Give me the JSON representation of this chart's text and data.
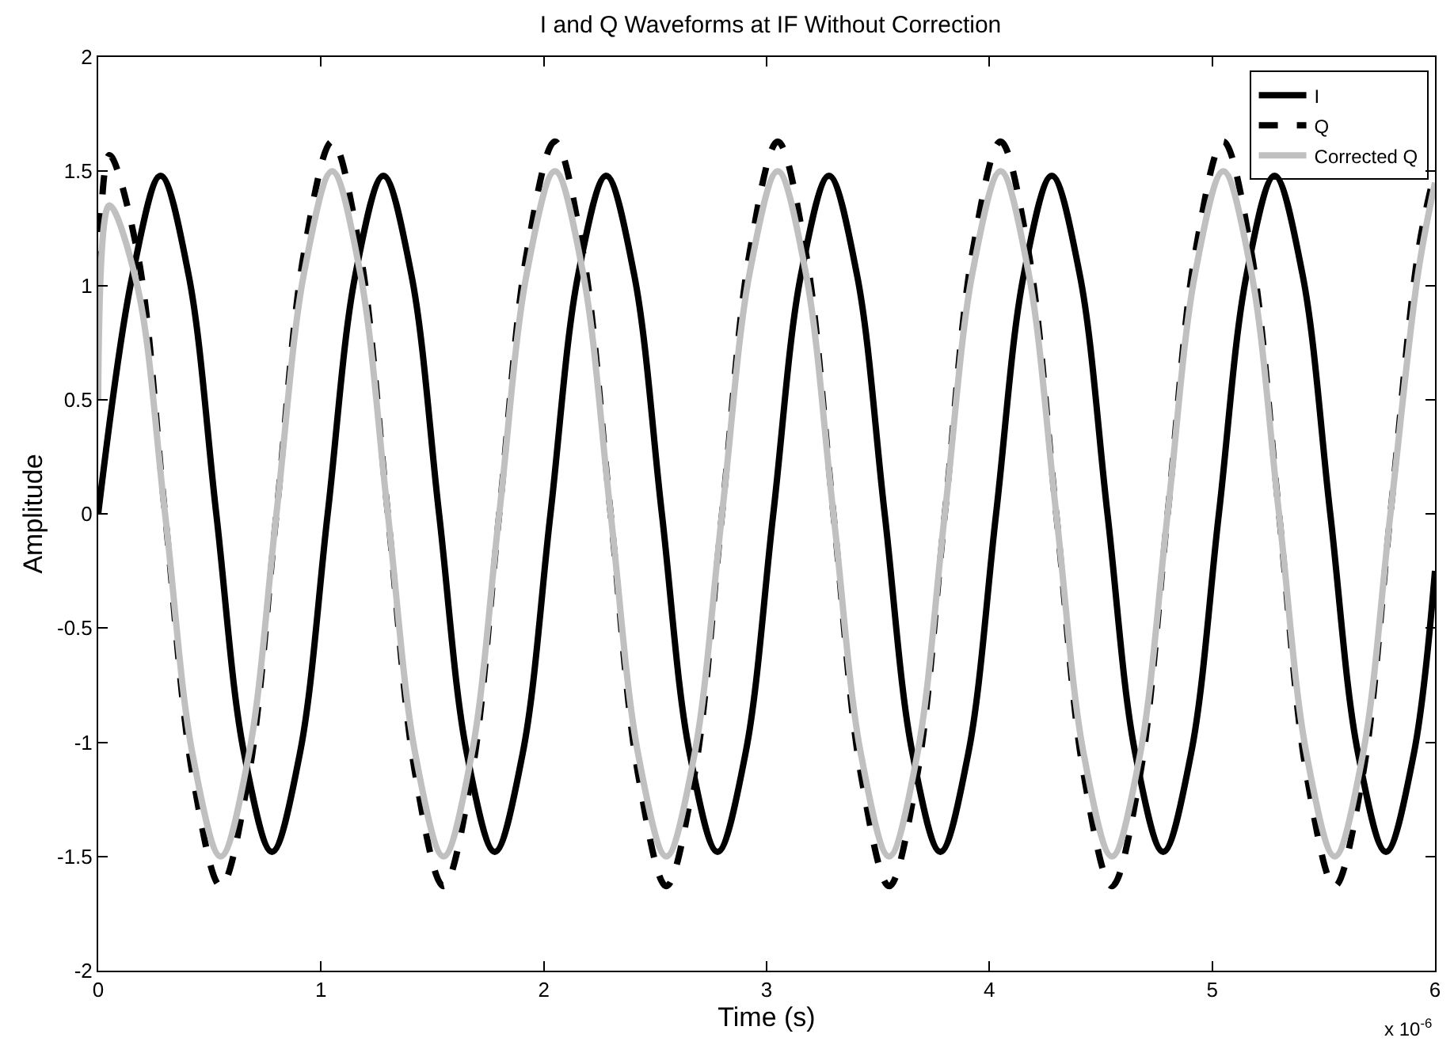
{
  "chart_data": {
    "type": "line",
    "title": "I and Q Waveforms at IF Without Correction",
    "xlabel": "Time (s)",
    "ylabel": "Amplitude",
    "annotations": [
      "x 10$^{-6}$"
    ],
    "xlim": [
      0,
      6
    ],
    "xticks": [
      0,
      1,
      2,
      3,
      4,
      5,
      6
    ],
    "ylim": [
      -2,
      2
    ],
    "yticks": [
      -2,
      -1.5,
      -1,
      -0.5,
      0,
      0.5,
      1,
      1.5,
      2
    ],
    "grid": false,
    "legend": "top right",
    "marker": "none",
    "series": [
      {
        "name": "I",
        "color": "#000000",
        "line_style": "solid",
        "x": [
          0,
          0.155,
          0.28,
          0.405,
          0.53,
          0.655,
          0.78,
          0.905,
          1.03,
          1.155,
          1.28,
          1.405,
          1.53,
          1.655,
          1.78,
          1.905,
          2.03,
          2.155,
          2.28,
          2.405,
          2.53,
          2.655,
          2.78,
          2.905,
          3.03,
          3.155,
          3.28,
          3.405,
          3.53,
          3.655,
          3.78,
          3.905,
          4.03,
          4.155,
          4.28,
          4.405,
          4.53,
          4.655,
          4.78,
          4.905,
          5.03,
          5.155,
          5.28,
          5.405,
          5.53,
          5.655,
          5.78,
          5.905,
          6
        ],
        "values": [
          0,
          1.05,
          1.48,
          1.05,
          0,
          -1.05,
          -1.48,
          -1.05,
          0,
          1.05,
          1.48,
          1.05,
          0,
          -1.05,
          -1.48,
          -1.05,
          0,
          1.05,
          1.48,
          1.05,
          0,
          -1.05,
          -1.48,
          -1.05,
          0,
          1.05,
          1.48,
          1.05,
          0,
          -1.05,
          -1.48,
          -1.05,
          0,
          1.05,
          1.48,
          1.05,
          0,
          -1.05,
          -1.48,
          -1.05,
          0,
          1.05,
          1.48,
          1.05,
          0,
          -1.05,
          -1.48,
          -1.05,
          -0.25
        ]
      },
      {
        "name": "Q",
        "color": "#000000",
        "line_style": "dashed",
        "x": [
          0,
          0.05,
          0.175,
          0.3,
          0.425,
          0.55,
          0.675,
          0.8,
          0.925,
          1.05,
          1.175,
          1.3,
          1.425,
          1.55,
          1.675,
          1.8,
          1.925,
          2.05,
          2.175,
          2.3,
          2.425,
          2.55,
          2.675,
          2.8,
          2.925,
          3.05,
          3.175,
          3.3,
          3.425,
          3.55,
          3.675,
          3.8,
          3.925,
          4.05,
          4.175,
          4.3,
          4.425,
          4.55,
          4.675,
          4.8,
          4.925,
          5.05,
          5.175,
          5.3,
          5.425,
          5.55,
          5.675,
          5.8,
          5.925,
          6
        ],
        "values": [
          0.9,
          1.57,
          1.15,
          0,
          -1.15,
          -1.63,
          -1.15,
          0,
          1.15,
          1.63,
          1.15,
          0,
          -1.15,
          -1.63,
          -1.15,
          0,
          1.15,
          1.63,
          1.15,
          0,
          -1.15,
          -1.63,
          -1.15,
          0,
          1.15,
          1.63,
          1.15,
          0,
          -1.15,
          -1.63,
          -1.15,
          0,
          1.15,
          1.63,
          1.15,
          0,
          -1.15,
          -1.63,
          -1.15,
          0,
          1.15,
          1.63,
          1.15,
          0,
          -1.15,
          -1.63,
          -1.15,
          0,
          1.15,
          1.5
        ]
      },
      {
        "name": "Corrected Q",
        "color": "#c0c0c0",
        "line_style": "solid",
        "x": [
          0,
          0.05,
          0.175,
          0.3,
          0.425,
          0.55,
          0.675,
          0.8,
          0.925,
          1.05,
          1.175,
          1.3,
          1.425,
          1.55,
          1.675,
          1.8,
          1.925,
          2.05,
          2.175,
          2.3,
          2.425,
          2.55,
          2.675,
          2.8,
          2.925,
          3.05,
          3.175,
          3.3,
          3.425,
          3.55,
          3.675,
          3.8,
          3.925,
          4.05,
          4.175,
          4.3,
          4.425,
          4.55,
          4.675,
          4.8,
          4.925,
          5.05,
          5.175,
          5.3,
          5.425,
          5.55,
          5.675,
          5.8,
          5.925,
          6
        ],
        "values": [
          0.5,
          1.35,
          1.0,
          0,
          -1.06,
          -1.5,
          -1.06,
          0,
          1.06,
          1.5,
          1.06,
          0,
          -1.06,
          -1.5,
          -1.06,
          0,
          1.06,
          1.5,
          1.06,
          0,
          -1.06,
          -1.5,
          -1.06,
          0,
          1.06,
          1.5,
          1.06,
          0,
          -1.06,
          -1.5,
          -1.06,
          0,
          1.06,
          1.5,
          1.06,
          0,
          -1.06,
          -1.5,
          -1.06,
          0,
          1.06,
          1.5,
          1.06,
          0,
          -1.06,
          -1.5,
          -1.06,
          0,
          1.06,
          1.45
        ]
      }
    ]
  }
}
